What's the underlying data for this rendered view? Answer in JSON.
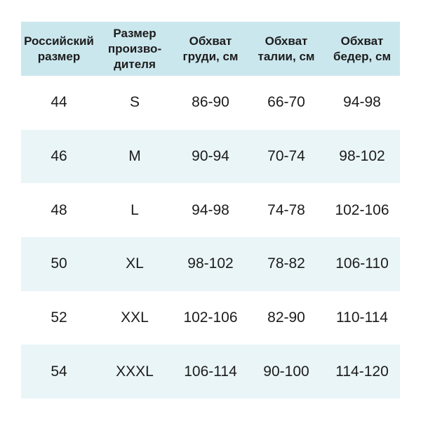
{
  "display": {
    "header_labels": [
      "Российский\nразмер",
      "Размер\nпроизво-\nдителя",
      "Обхват\nгруди, см",
      "Обхват\nталии, см",
      "Обхват\nбедер, см"
    ]
  },
  "colors": {
    "header_bg": "#cbe7ee",
    "row_alt_bg": "#eaf5f8",
    "text": "#1c1c1c"
  },
  "chart_data": {
    "type": "table",
    "columns": [
      "Российский размер",
      "Размер производителя",
      "Обхват груди, см",
      "Обхват талии, см",
      "Обхват бедер, см"
    ],
    "rows": [
      [
        "44",
        "S",
        "86-90",
        "66-70",
        "94-98"
      ],
      [
        "46",
        "M",
        "90-94",
        "70-74",
        "98-102"
      ],
      [
        "48",
        "L",
        "94-98",
        "74-78",
        "102-106"
      ],
      [
        "50",
        "XL",
        "98-102",
        "78-82",
        "106-110"
      ],
      [
        "52",
        "XXL",
        "102-106",
        "82-90",
        "110-114"
      ],
      [
        "54",
        "XXXL",
        "106-114",
        "90-100",
        "114-120"
      ]
    ]
  }
}
